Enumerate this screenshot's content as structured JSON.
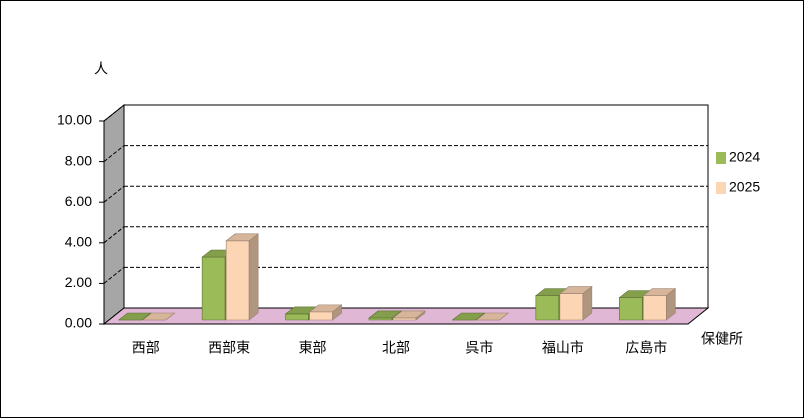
{
  "chart_data": {
    "type": "bar3d",
    "y_label": "人",
    "x_label": "保健所",
    "categories": [
      "西部",
      "西部東",
      "東部",
      "北部",
      "呉市",
      "福山市",
      "広島市"
    ],
    "series": [
      {
        "name": "2024",
        "color": "#9bbb59",
        "values": [
          0,
          3.1,
          0.3,
          0.1,
          0,
          1.2,
          1.1
        ]
      },
      {
        "name": "2025",
        "color": "#fcd5b5",
        "values": [
          0,
          3.9,
          0.4,
          0.1,
          0,
          1.3,
          1.2
        ]
      }
    ],
    "ylim": [
      0,
      10
    ],
    "yticks": [
      {
        "value": 0,
        "label": "0.00"
      },
      {
        "value": 2,
        "label": "2.00"
      },
      {
        "value": 4,
        "label": "4.00"
      },
      {
        "value": 6,
        "label": "6.00"
      },
      {
        "value": 8,
        "label": "8.00"
      },
      {
        "value": 10,
        "label": "10.00"
      }
    ],
    "grid": true
  }
}
